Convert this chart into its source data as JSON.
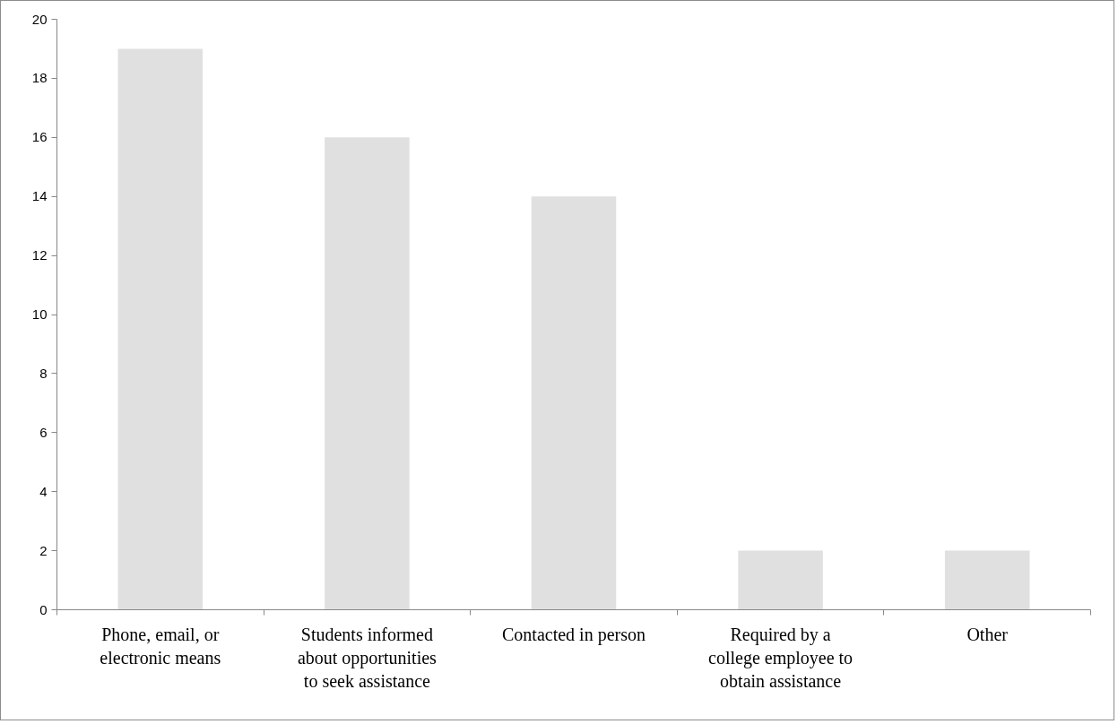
{
  "chart_data": {
    "type": "bar",
    "categories": [
      "Phone, email, or electronic means",
      "Students informed about opportunities to seek assistance",
      "Contacted in person",
      "Required by a college employee to obtain assistance",
      "Other"
    ],
    "values": [
      19,
      16,
      14,
      2,
      2
    ],
    "color": "#e0e0e0",
    "ylim": [
      0,
      20
    ],
    "yticks": [
      0,
      2,
      4,
      6,
      8,
      10,
      12,
      14,
      16,
      18,
      20
    ],
    "grid": false
  }
}
